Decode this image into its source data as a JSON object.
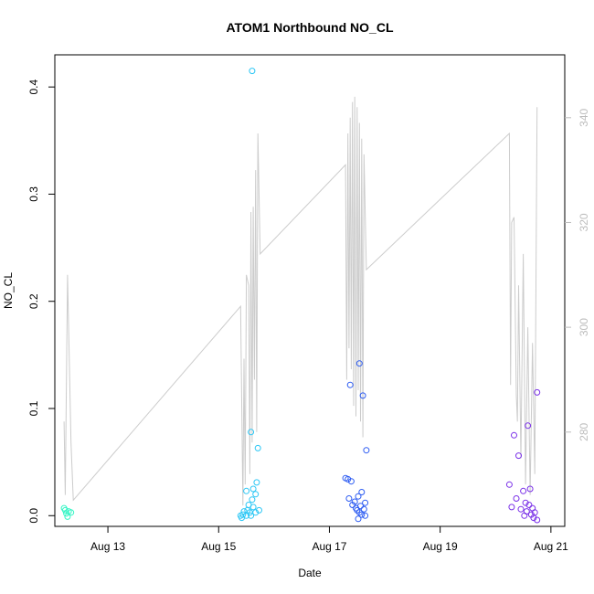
{
  "chart_data": {
    "type": "scatter",
    "title": "ATOM1 Northbound NO_CL",
    "xlabel": "Date",
    "ylabel": "NO_CL",
    "x_ticks": [
      "Aug 13",
      "Aug 15",
      "Aug 17",
      "Aug 19",
      "Aug 21"
    ],
    "y_ticks": [
      "0.0",
      "0.1",
      "0.2",
      "0.3",
      "0.4"
    ],
    "y2_ticks": [
      "280",
      "300",
      "320",
      "340"
    ],
    "xlim": [
      "2023-08-12T01:00",
      "2023-08-21T06:00"
    ],
    "ylim": [
      -0.01,
      0.43
    ],
    "y2lim": [
      262,
      352
    ],
    "grid": false,
    "legend": "none",
    "colors": {
      "aug12": "#33f5c4",
      "aug15": "#2cc7f5",
      "aug17": "#2d5cf2",
      "aug20": "#7a30e8",
      "line": "#cccccc",
      "right_axis": "#bdbdbd"
    },
    "series": [
      {
        "points": [
          [
            "2023-08-12T05:00",
            0.007
          ],
          [
            "2023-08-12T06:00",
            0.002
          ],
          [
            "2023-08-12T05:30",
            0.005
          ],
          [
            "2023-08-12T07:00",
            0.004
          ],
          [
            "2023-08-12T06:30",
            -0.001
          ],
          [
            "2023-08-12T08:00",
            0.003
          ]
        ]
      },
      {
        "points": [
          [
            "2023-08-15T14:30",
            0.415
          ],
          [
            "2023-08-15T14:00",
            0.078
          ],
          [
            "2023-08-15T17:00",
            0.063
          ],
          [
            "2023-08-15T16:30",
            0.031
          ],
          [
            "2023-08-15T15:00",
            0.025
          ],
          [
            "2023-08-15T12:00",
            0.023
          ],
          [
            "2023-08-15T16:00",
            0.02
          ],
          [
            "2023-08-15T14:30",
            0.015
          ],
          [
            "2023-08-15T13:00",
            0.01
          ],
          [
            "2023-08-15T15:00",
            0.008
          ],
          [
            "2023-08-15T12:30",
            0.005
          ],
          [
            "2023-08-15T17:30",
            0.005
          ],
          [
            "2023-08-15T11:00",
            0.004
          ],
          [
            "2023-08-15T13:30",
            0.003
          ],
          [
            "2023-08-15T16:00",
            0.003
          ],
          [
            "2023-08-15T10:30",
            0.001
          ],
          [
            "2023-08-15T12:00",
            0.0
          ],
          [
            "2023-08-15T14:00",
            0.0
          ],
          [
            "2023-08-15T10:00",
            -0.002
          ],
          [
            "2023-08-15T09:30",
            0.0
          ]
        ]
      },
      {
        "points": [
          [
            "2023-08-17T13:00",
            0.142
          ],
          [
            "2023-08-17T09:00",
            0.122
          ],
          [
            "2023-08-17T14:30",
            0.112
          ],
          [
            "2023-08-17T16:00",
            0.061
          ],
          [
            "2023-08-17T07:00",
            0.035
          ],
          [
            "2023-08-17T08:00",
            0.034
          ],
          [
            "2023-08-17T09:30",
            0.032
          ],
          [
            "2023-08-17T14:00",
            0.022
          ],
          [
            "2023-08-17T12:30",
            0.018
          ],
          [
            "2023-08-17T08:30",
            0.016
          ],
          [
            "2023-08-17T11:00",
            0.013
          ],
          [
            "2023-08-17T15:30",
            0.012
          ],
          [
            "2023-08-17T10:00",
            0.01
          ],
          [
            "2023-08-17T13:30",
            0.009
          ],
          [
            "2023-08-17T11:30",
            0.007
          ],
          [
            "2023-08-17T15:00",
            0.006
          ],
          [
            "2023-08-17T12:00",
            0.005
          ],
          [
            "2023-08-17T13:00",
            0.003
          ],
          [
            "2023-08-17T14:00",
            0.001
          ],
          [
            "2023-08-17T12:30",
            -0.003
          ],
          [
            "2023-08-17T15:30",
            0.0
          ]
        ]
      },
      {
        "points": [
          [
            "2023-08-20T18:00",
            0.115
          ],
          [
            "2023-08-20T14:00",
            0.084
          ],
          [
            "2023-08-20T08:00",
            0.075
          ],
          [
            "2023-08-20T10:00",
            0.056
          ],
          [
            "2023-08-20T06:00",
            0.029
          ],
          [
            "2023-08-20T15:00",
            0.025
          ],
          [
            "2023-08-20T12:00",
            0.023
          ],
          [
            "2023-08-20T09:00",
            0.016
          ],
          [
            "2023-08-20T13:00",
            0.012
          ],
          [
            "2023-08-20T14:30",
            0.01
          ],
          [
            "2023-08-20T07:00",
            0.008
          ],
          [
            "2023-08-20T16:00",
            0.007
          ],
          [
            "2023-08-20T11:00",
            0.006
          ],
          [
            "2023-08-20T13:30",
            0.004
          ],
          [
            "2023-08-20T17:00",
            0.003
          ],
          [
            "2023-08-20T15:30",
            0.001
          ],
          [
            "2023-08-20T12:30",
            0.0
          ],
          [
            "2023-08-20T16:30",
            -0.002
          ],
          [
            "2023-08-20T18:00",
            -0.004
          ]
        ]
      }
    ],
    "line_series": {
      "axis": "right",
      "points": [
        [
          "2023-08-12T05:00",
          282
        ],
        [
          "2023-08-12T05:30",
          268
        ],
        [
          "2023-08-12T06:30",
          310
        ],
        [
          "2023-08-12T08:00",
          278
        ],
        [
          "2023-08-12T09:00",
          267
        ],
        [
          "2023-08-15T09:30",
          304
        ],
        [
          "2023-08-15T10:30",
          266
        ],
        [
          "2023-08-15T11:00",
          294
        ],
        [
          "2023-08-15T11:30",
          270
        ],
        [
          "2023-08-15T12:00",
          310
        ],
        [
          "2023-08-15T13:00",
          308
        ],
        [
          "2023-08-15T13:30",
          272
        ],
        [
          "2023-08-15T14:00",
          322
        ],
        [
          "2023-08-15T14:30",
          278
        ],
        [
          "2023-08-15T15:00",
          323
        ],
        [
          "2023-08-15T15:30",
          290
        ],
        [
          "2023-08-15T16:00",
          330
        ],
        [
          "2023-08-15T16:30",
          280
        ],
        [
          "2023-08-15T17:00",
          337
        ],
        [
          "2023-08-15T18:00",
          314
        ],
        [
          "2023-08-17T07:00",
          331
        ],
        [
          "2023-08-17T07:30",
          290
        ],
        [
          "2023-08-17T08:00",
          337
        ],
        [
          "2023-08-17T08:30",
          296
        ],
        [
          "2023-08-17T09:00",
          340
        ],
        [
          "2023-08-17T09:30",
          292
        ],
        [
          "2023-08-17T10:00",
          343
        ],
        [
          "2023-08-17T10:30",
          285
        ],
        [
          "2023-08-17T11:00",
          344
        ],
        [
          "2023-08-17T11:30",
          283
        ],
        [
          "2023-08-17T12:00",
          342
        ],
        [
          "2023-08-17T12:30",
          288
        ],
        [
          "2023-08-17T13:00",
          339
        ],
        [
          "2023-08-17T13:30",
          282
        ],
        [
          "2023-08-17T14:00",
          336
        ],
        [
          "2023-08-17T14:30",
          279
        ],
        [
          "2023-08-17T15:00",
          333
        ],
        [
          "2023-08-17T16:00",
          311
        ],
        [
          "2023-08-20T06:00",
          337
        ],
        [
          "2023-08-20T06:30",
          289
        ],
        [
          "2023-08-20T07:00",
          320
        ],
        [
          "2023-08-20T08:00",
          321
        ],
        [
          "2023-08-20T09:00",
          287
        ],
        [
          "2023-08-20T09:30",
          282
        ],
        [
          "2023-08-20T10:00",
          308
        ],
        [
          "2023-08-20T11:00",
          275
        ],
        [
          "2023-08-20T12:00",
          314
        ],
        [
          "2023-08-20T13:00",
          270
        ],
        [
          "2023-08-20T14:00",
          300
        ],
        [
          "2023-08-20T15:00",
          268
        ],
        [
          "2023-08-20T16:00",
          297
        ],
        [
          "2023-08-20T17:00",
          272
        ],
        [
          "2023-08-20T18:00",
          342
        ]
      ]
    }
  }
}
